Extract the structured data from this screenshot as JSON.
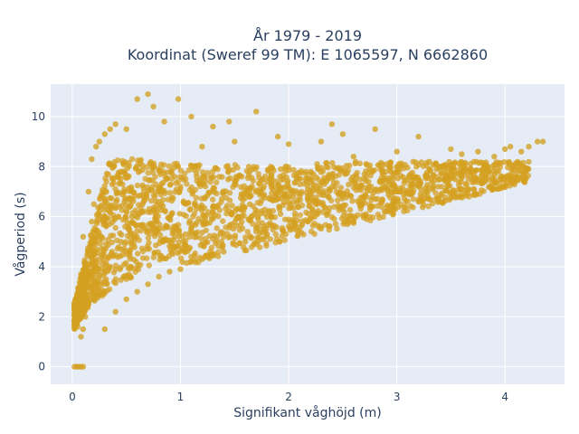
{
  "chart_data": {
    "type": "scatter",
    "title_line1": "År 1979 - 2019",
    "title_line2": "Koordinat (Sweref 99 TM): E 1065597, N 6662860",
    "xlabel": "Signifikant våghöjd (m)",
    "ylabel": "Vågperiod (s)",
    "xlim": [
      -0.2,
      4.55
    ],
    "ylim": [
      -0.7,
      11.3
    ],
    "x_ticks": [
      0,
      1,
      2,
      3,
      4
    ],
    "y_ticks": [
      0,
      2,
      4,
      6,
      8,
      10
    ],
    "grid": true,
    "legend": "none",
    "marker_color": "#d4a020",
    "background_color": "#e5ecf6",
    "points": [
      [
        0.02,
        0
      ],
      [
        0.04,
        0
      ],
      [
        0.06,
        0
      ],
      [
        0.08,
        0
      ],
      [
        0.1,
        0
      ],
      [
        0.05,
        1.6
      ],
      [
        0.08,
        1.2
      ],
      [
        0.1,
        1.5
      ],
      [
        0.12,
        2.0
      ],
      [
        0.15,
        2.6
      ],
      [
        0.05,
        2.2
      ],
      [
        0.07,
        2.8
      ],
      [
        0.1,
        3.2
      ],
      [
        0.12,
        4.0
      ],
      [
        0.14,
        4.5
      ],
      [
        0.1,
        5.2
      ],
      [
        0.08,
        3.7
      ],
      [
        0.18,
        5.8
      ],
      [
        0.2,
        6.5
      ],
      [
        0.15,
        7.0
      ],
      [
        0.18,
        8.3
      ],
      [
        0.22,
        8.8
      ],
      [
        0.25,
        9.0
      ],
      [
        0.3,
        9.3
      ],
      [
        0.35,
        9.5
      ],
      [
        0.4,
        9.7
      ],
      [
        0.5,
        9.5
      ],
      [
        0.6,
        10.7
      ],
      [
        0.7,
        10.9
      ],
      [
        0.75,
        10.4
      ],
      [
        0.85,
        9.8
      ],
      [
        0.98,
        10.7
      ],
      [
        1.1,
        10.0
      ],
      [
        1.3,
        9.6
      ],
      [
        1.45,
        9.8
      ],
      [
        1.7,
        10.2
      ],
      [
        1.9,
        9.2
      ],
      [
        2.0,
        8.9
      ],
      [
        2.3,
        9.0
      ],
      [
        2.5,
        9.3
      ],
      [
        2.8,
        9.5
      ],
      [
        3.2,
        9.2
      ],
      [
        2.4,
        9.7
      ],
      [
        1.2,
        8.8
      ],
      [
        1.5,
        9.0
      ],
      [
        2.6,
        8.4
      ],
      [
        3.0,
        8.6
      ],
      [
        3.3,
        8.2
      ],
      [
        3.5,
        8.7
      ],
      [
        3.6,
        8.5
      ],
      [
        3.75,
        8.6
      ],
      [
        3.9,
        8.4
      ],
      [
        4.0,
        8.7
      ],
      [
        4.05,
        8.8
      ],
      [
        4.15,
        8.6
      ],
      [
        4.22,
        8.8
      ],
      [
        4.3,
        9.0
      ],
      [
        4.35,
        9.0
      ],
      [
        3.7,
        7.5
      ],
      [
        3.8,
        7.4
      ],
      [
        3.4,
        8.0
      ],
      [
        0.3,
        1.5
      ],
      [
        0.4,
        2.2
      ],
      [
        0.5,
        2.7
      ],
      [
        0.6,
        3.0
      ],
      [
        0.7,
        3.3
      ],
      [
        0.8,
        3.6
      ],
      [
        0.9,
        3.8
      ],
      [
        1.0,
        3.9
      ],
      [
        1.2,
        4.3
      ],
      [
        1.4,
        4.6
      ],
      [
        1.6,
        5.0
      ],
      [
        1.8,
        5.3
      ],
      [
        2.0,
        5.6
      ],
      [
        2.2,
        5.9
      ],
      [
        2.5,
        6.3
      ],
      [
        2.8,
        6.7
      ],
      [
        3.0,
        7.0
      ],
      [
        3.2,
        7.3
      ],
      [
        3.4,
        7.5
      ],
      [
        3.6,
        7.6
      ],
      [
        3.2,
        6.6
      ],
      [
        2.9,
        6.2
      ],
      [
        2.6,
        5.8
      ],
      [
        2.3,
        5.6
      ],
      [
        0.35,
        4.0
      ],
      [
        0.45,
        5.0
      ],
      [
        0.55,
        6.0
      ],
      [
        0.65,
        6.5
      ],
      [
        0.8,
        7.0
      ],
      [
        1.0,
        7.2
      ],
      [
        1.2,
        7.3
      ],
      [
        1.5,
        7.3
      ],
      [
        1.8,
        7.4
      ],
      [
        2.1,
        7.5
      ],
      [
        2.4,
        7.6
      ],
      [
        2.7,
        7.7
      ],
      [
        3.0,
        7.8
      ],
      [
        3.3,
        7.9
      ],
      [
        0.25,
        3.0
      ],
      [
        0.3,
        6.0
      ]
    ]
  }
}
